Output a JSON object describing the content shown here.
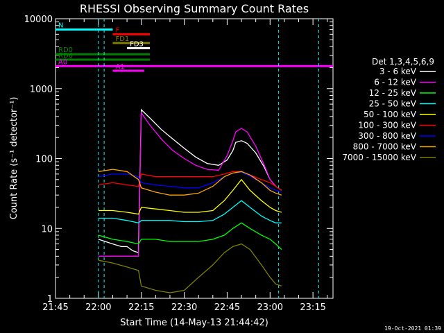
{
  "chart_data": {
    "type": "line",
    "title": "RHESSI Observing Summary Count Rates",
    "xlabel": "Start Time (14-May-13 21:44:42)",
    "ylabel": "Count Rate (s⁻¹ detector⁻¹)",
    "yscale": "log",
    "ylim": [
      1,
      10000
    ],
    "xlim": [
      "21:45",
      "23:22"
    ],
    "x_ticks": [
      "21:45",
      "22:00",
      "22:15",
      "22:30",
      "22:45",
      "23:00",
      "23:15"
    ],
    "y_ticks": [
      "1",
      "10",
      "100",
      "1000",
      "10000"
    ],
    "legend_title": "Det 1,3,4,5,6,9",
    "legend_position": "right",
    "footer": "19-Oct-2021 01:39",
    "series": [
      {
        "name": "3 - 6 keV",
        "color": "#ffffff",
        "points": [
          [
            "22:00",
            7
          ],
          [
            "22:05",
            6
          ],
          [
            "22:08",
            5.5
          ],
          [
            "22:10",
            5.5
          ],
          [
            "22:12",
            4.8
          ],
          [
            "22:14",
            4.5
          ],
          [
            "22:14",
            5.5
          ],
          [
            "22:15",
            500
          ],
          [
            "22:18",
            380
          ],
          [
            "22:22",
            260
          ],
          [
            "22:26",
            190
          ],
          [
            "22:30",
            140
          ],
          [
            "22:34",
            105
          ],
          [
            "22:38",
            85
          ],
          [
            "22:42",
            80
          ],
          [
            "22:45",
            95
          ],
          [
            "22:47",
            130
          ],
          [
            "22:48",
            170
          ],
          [
            "22:50",
            180
          ],
          [
            "22:52",
            165
          ],
          [
            "22:55",
            120
          ],
          [
            "22:58",
            75
          ],
          [
            "23:00",
            50
          ],
          [
            "23:02",
            40
          ],
          [
            "23:04",
            35
          ]
        ]
      },
      {
        "name": "6 - 12 keV",
        "color": "#ff00ff",
        "points": [
          [
            "22:00",
            4
          ],
          [
            "22:05",
            4
          ],
          [
            "22:10",
            4
          ],
          [
            "22:14",
            4
          ],
          [
            "22:15",
            450
          ],
          [
            "22:18",
            300
          ],
          [
            "22:22",
            190
          ],
          [
            "22:26",
            130
          ],
          [
            "22:30",
            100
          ],
          [
            "22:34",
            80
          ],
          [
            "22:38",
            70
          ],
          [
            "22:42",
            68
          ],
          [
            "22:45",
            110
          ],
          [
            "22:47",
            180
          ],
          [
            "22:48",
            240
          ],
          [
            "22:50",
            270
          ],
          [
            "22:52",
            240
          ],
          [
            "22:55",
            150
          ],
          [
            "22:58",
            80
          ],
          [
            "23:00",
            50
          ],
          [
            "23:02",
            40
          ],
          [
            "23:04",
            35
          ]
        ]
      },
      {
        "name": "12 - 25 keV",
        "color": "#00ff00",
        "points": [
          [
            "22:00",
            8
          ],
          [
            "22:05",
            7
          ],
          [
            "22:10",
            6.5
          ],
          [
            "22:14",
            6
          ],
          [
            "22:15",
            7
          ],
          [
            "22:20",
            7
          ],
          [
            "22:25",
            6.5
          ],
          [
            "22:30",
            6.5
          ],
          [
            "22:35",
            6.5
          ],
          [
            "22:40",
            7
          ],
          [
            "22:44",
            8
          ],
          [
            "22:47",
            10
          ],
          [
            "22:50",
            12
          ],
          [
            "22:53",
            10
          ],
          [
            "22:57",
            8
          ],
          [
            "23:00",
            7
          ],
          [
            "23:02",
            6
          ],
          [
            "23:04",
            5
          ]
        ]
      },
      {
        "name": "25 - 50 keV",
        "color": "#00ffff",
        "points": [
          [
            "22:00",
            14
          ],
          [
            "22:05",
            14
          ],
          [
            "22:10",
            13
          ],
          [
            "22:14",
            12
          ],
          [
            "22:15",
            13
          ],
          [
            "22:20",
            13
          ],
          [
            "22:25",
            13
          ],
          [
            "22:30",
            12.5
          ],
          [
            "22:35",
            12.5
          ],
          [
            "22:40",
            13
          ],
          [
            "22:44",
            16
          ],
          [
            "22:47",
            20
          ],
          [
            "22:50",
            25
          ],
          [
            "22:53",
            20
          ],
          [
            "22:57",
            15
          ],
          [
            "23:00",
            13
          ],
          [
            "23:02",
            12
          ],
          [
            "23:04",
            12
          ]
        ]
      },
      {
        "name": "50 - 100 keV",
        "color": "#ffff00",
        "points": [
          [
            "22:00",
            18
          ],
          [
            "22:05",
            18
          ],
          [
            "22:10",
            17
          ],
          [
            "22:14",
            16
          ],
          [
            "22:15",
            20
          ],
          [
            "22:20",
            19
          ],
          [
            "22:25",
            18
          ],
          [
            "22:30",
            17
          ],
          [
            "22:35",
            17
          ],
          [
            "22:40",
            18
          ],
          [
            "22:44",
            25
          ],
          [
            "22:47",
            35
          ],
          [
            "22:50",
            50
          ],
          [
            "22:53",
            35
          ],
          [
            "22:57",
            25
          ],
          [
            "23:00",
            20
          ],
          [
            "23:02",
            18
          ],
          [
            "23:04",
            17
          ]
        ]
      },
      {
        "name": "100 - 300 keV",
        "color": "#ff0000",
        "points": [
          [
            "22:00",
            42
          ],
          [
            "22:05",
            45
          ],
          [
            "22:10",
            42
          ],
          [
            "22:14",
            40
          ],
          [
            "22:15",
            60
          ],
          [
            "22:20",
            55
          ],
          [
            "22:25",
            55
          ],
          [
            "22:30",
            55
          ],
          [
            "22:35",
            55
          ],
          [
            "22:40",
            55
          ],
          [
            "22:44",
            60
          ],
          [
            "22:47",
            65
          ],
          [
            "22:50",
            65
          ],
          [
            "22:53",
            58
          ],
          [
            "22:57",
            50
          ],
          [
            "23:00",
            45
          ],
          [
            "23:02",
            40
          ],
          [
            "23:04",
            35
          ]
        ]
      },
      {
        "name": "300 - 800 keV",
        "color": "#0000ff",
        "points": [
          [
            "22:00",
            55
          ],
          [
            "22:05",
            60
          ],
          [
            "22:10",
            60
          ],
          [
            "22:14",
            55
          ],
          [
            "22:15",
            45
          ],
          [
            "22:20",
            42
          ],
          [
            "22:25",
            40
          ],
          [
            "22:30",
            38
          ],
          [
            "22:35",
            38
          ],
          [
            "22:40",
            45
          ],
          [
            "22:44",
            55
          ],
          [
            "22:47",
            62
          ],
          [
            "22:50",
            64
          ],
          [
            "22:53",
            56
          ],
          [
            "22:57",
            45
          ],
          [
            "23:00",
            38
          ],
          [
            "23:02",
            35
          ],
          [
            "23:04",
            33
          ]
        ]
      },
      {
        "name": "800 - 7000 keV",
        "color": "#ffa500",
        "points": [
          [
            "22:00",
            65
          ],
          [
            "22:05",
            70
          ],
          [
            "22:10",
            65
          ],
          [
            "22:14",
            50
          ],
          [
            "22:15",
            38
          ],
          [
            "22:20",
            33
          ],
          [
            "22:25",
            30
          ],
          [
            "22:30",
            30
          ],
          [
            "22:35",
            32
          ],
          [
            "22:40",
            40
          ],
          [
            "22:44",
            55
          ],
          [
            "22:47",
            62
          ],
          [
            "22:50",
            65
          ],
          [
            "22:53",
            58
          ],
          [
            "22:57",
            45
          ],
          [
            "23:00",
            35
          ],
          [
            "23:02",
            32
          ],
          [
            "23:04",
            30
          ]
        ]
      },
      {
        "name": "7000 - 15000 keV",
        "color": "#808000",
        "points": [
          [
            "22:00",
            3.5
          ],
          [
            "22:05",
            3.2
          ],
          [
            "22:10",
            2.8
          ],
          [
            "22:14",
            2.5
          ],
          [
            "22:15",
            1.5
          ],
          [
            "22:20",
            1.3
          ],
          [
            "22:25",
            1.2
          ],
          [
            "22:30",
            1.3
          ],
          [
            "22:35",
            2
          ],
          [
            "22:40",
            3
          ],
          [
            "22:44",
            4.5
          ],
          [
            "22:47",
            5.5
          ],
          [
            "22:50",
            6
          ],
          [
            "22:53",
            5
          ],
          [
            "22:57",
            3
          ],
          [
            "23:00",
            2
          ],
          [
            "23:02",
            1.6
          ],
          [
            "23:04",
            1.5
          ]
        ]
      }
    ],
    "annotations": [
      {
        "label": "N",
        "color": "#00ffff",
        "y": 7000,
        "x": [
          "21:45",
          "22:05"
        ]
      },
      {
        "label": "F",
        "color": "#ff0000",
        "y": 6000,
        "x": [
          "22:05",
          "22:18"
        ]
      },
      {
        "label": "FD1",
        "color": "#808000",
        "y": 4500,
        "x": [
          "22:05",
          "22:18"
        ]
      },
      {
        "label": "FD3",
        "color": "#ffffff",
        "y": 3800,
        "x": [
          "22:10",
          "22:18"
        ]
      },
      {
        "label": "RD0",
        "color": "#008000",
        "y": 3100,
        "x": [
          "21:45",
          "22:18"
        ]
      },
      {
        "label": "RD6",
        "color": "#008000",
        "y": 2600,
        "x": [
          "21:45",
          "22:18"
        ]
      },
      {
        "label": "A0",
        "color": "#ff00ff",
        "y": 2100,
        "x": [
          "21:45",
          "23:22"
        ]
      },
      {
        "label": "A1",
        "color": "#ff00ff",
        "y": 1800,
        "x": [
          "22:05",
          "22:16"
        ]
      }
    ],
    "grid": false
  }
}
